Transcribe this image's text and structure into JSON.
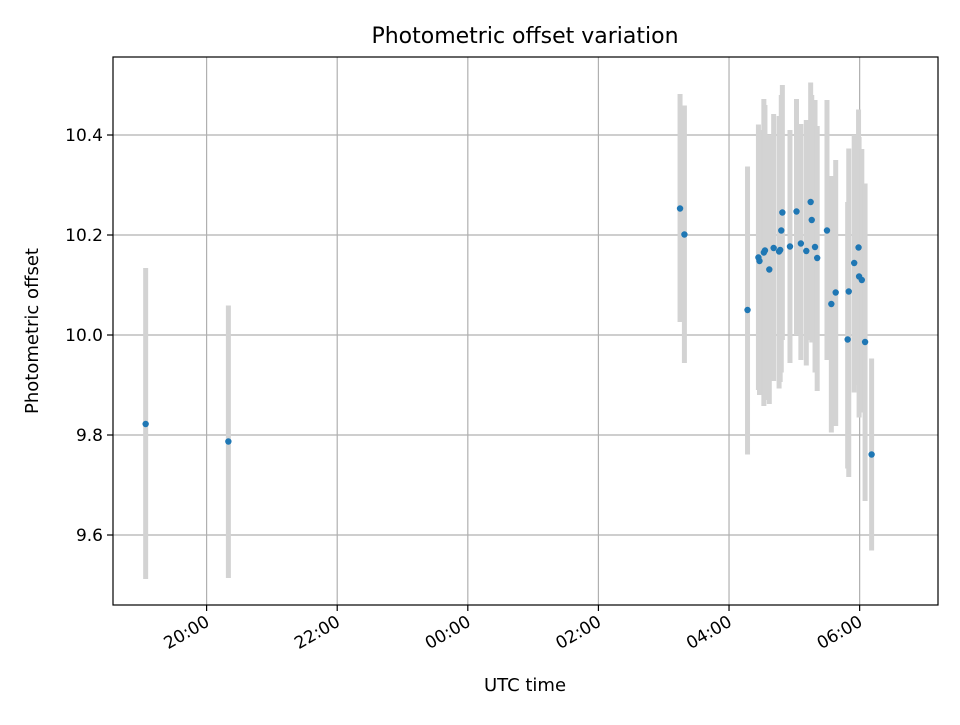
{
  "chart_data": {
    "type": "scatter",
    "title": "Photometric offset variation",
    "xlabel": "UTC time",
    "ylabel": "Photometric offset",
    "x_axis": {
      "type": "time",
      "start": "2000-01-01T18:34:00Z",
      "end": "2000-01-02T07:12:00Z",
      "ticks": [
        {
          "t": "2000-01-01T20:00:00Z",
          "label": "20:00"
        },
        {
          "t": "2000-01-01T22:00:00Z",
          "label": "22:00"
        },
        {
          "t": "2000-01-02T00:00:00Z",
          "label": "00:00"
        },
        {
          "t": "2000-01-02T02:00:00Z",
          "label": "02:00"
        },
        {
          "t": "2000-01-02T04:00:00Z",
          "label": "04:00"
        },
        {
          "t": "2000-01-02T06:00:00Z",
          "label": "06:00"
        }
      ]
    },
    "ylim": [
      9.46,
      10.556
    ],
    "y_ticks": [
      {
        "v": 9.6,
        "label": "9.6"
      },
      {
        "v": 9.8,
        "label": "9.8"
      },
      {
        "v": 10.0,
        "label": "10.0"
      },
      {
        "v": 10.2,
        "label": "10.2"
      },
      {
        "v": 10.4,
        "label": "10.4"
      }
    ],
    "grid": true,
    "colors": {
      "marker": "#1f77b4",
      "errorbar": "#d3d3d3",
      "grid": "#b0b0b0"
    },
    "points": [
      {
        "t": "2000-01-01T19:04:00Z",
        "y": 9.822,
        "lo": 9.512,
        "hi": 10.134
      },
      {
        "t": "2000-01-01T20:20:00Z",
        "y": 9.787,
        "lo": 9.514,
        "hi": 10.059
      },
      {
        "t": "2000-01-02T03:15:00Z",
        "y": 10.253,
        "lo": 10.026,
        "hi": 10.482
      },
      {
        "t": "2000-01-02T03:19:00Z",
        "y": 10.201,
        "lo": 9.944,
        "hi": 10.459
      },
      {
        "t": "2000-01-02T04:17:00Z",
        "y": 10.05,
        "lo": 9.761,
        "hi": 10.337
      },
      {
        "t": "2000-01-02T04:27:00Z",
        "y": 10.155,
        "lo": 9.89,
        "hi": 10.421
      },
      {
        "t": "2000-01-02T04:28:00Z",
        "y": 10.148,
        "lo": 9.88,
        "hi": 10.41
      },
      {
        "t": "2000-01-02T04:32:00Z",
        "y": 10.165,
        "lo": 9.858,
        "hi": 10.472
      },
      {
        "t": "2000-01-02T04:33:00Z",
        "y": 10.169,
        "lo": 9.87,
        "hi": 10.46
      },
      {
        "t": "2000-01-02T04:37:00Z",
        "y": 10.131,
        "lo": 9.862,
        "hi": 10.4
      },
      {
        "t": "2000-01-02T04:41:00Z",
        "y": 10.174,
        "lo": 9.908,
        "hi": 10.442
      },
      {
        "t": "2000-01-02T04:46:00Z",
        "y": 10.167,
        "lo": 9.893,
        "hi": 10.438
      },
      {
        "t": "2000-01-02T04:47:00Z",
        "y": 10.17,
        "lo": 9.906,
        "hi": 10.434
      },
      {
        "t": "2000-01-02T04:48:00Z",
        "y": 10.209,
        "lo": 9.925,
        "hi": 10.48
      },
      {
        "t": "2000-01-02T04:49:00Z",
        "y": 10.245,
        "lo": 9.99,
        "hi": 10.5
      },
      {
        "t": "2000-01-02T04:56:00Z",
        "y": 10.177,
        "lo": 9.944,
        "hi": 10.41
      },
      {
        "t": "2000-01-02T05:02:00Z",
        "y": 10.247,
        "lo": 10.0,
        "hi": 10.472
      },
      {
        "t": "2000-01-02T05:06:00Z",
        "y": 10.183,
        "lo": 9.95,
        "hi": 10.422
      },
      {
        "t": "2000-01-02T05:11:00Z",
        "y": 10.168,
        "lo": 9.939,
        "hi": 10.43
      },
      {
        "t": "2000-01-02T05:15:00Z",
        "y": 10.266,
        "lo": 9.99,
        "hi": 10.505
      },
      {
        "t": "2000-01-02T05:16:00Z",
        "y": 10.23,
        "lo": 9.985,
        "hi": 10.48
      },
      {
        "t": "2000-01-02T05:19:00Z",
        "y": 10.176,
        "lo": 9.925,
        "hi": 10.47
      },
      {
        "t": "2000-01-02T05:21:00Z",
        "y": 10.154,
        "lo": 9.888,
        "hi": 10.418
      },
      {
        "t": "2000-01-02T05:30:00Z",
        "y": 10.209,
        "lo": 9.95,
        "hi": 10.47
      },
      {
        "t": "2000-01-02T05:34:00Z",
        "y": 10.062,
        "lo": 9.805,
        "hi": 10.318
      },
      {
        "t": "2000-01-02T05:38:00Z",
        "y": 10.085,
        "lo": 9.818,
        "hi": 10.35
      },
      {
        "t": "2000-01-02T05:49:00Z",
        "y": 9.991,
        "lo": 9.733,
        "hi": 10.266
      },
      {
        "t": "2000-01-02T05:50:00Z",
        "y": 10.087,
        "lo": 9.716,
        "hi": 10.373
      },
      {
        "t": "2000-01-02T05:55:00Z",
        "y": 10.144,
        "lo": 9.885,
        "hi": 10.4
      },
      {
        "t": "2000-01-02T05:59:00Z",
        "y": 10.175,
        "lo": 9.9,
        "hi": 10.451
      },
      {
        "t": "2000-01-02T05:59:30Z",
        "y": 10.117,
        "lo": 9.835,
        "hi": 10.396
      },
      {
        "t": "2000-01-02T06:02:00Z",
        "y": 10.11,
        "lo": 9.845,
        "hi": 10.372
      },
      {
        "t": "2000-01-02T06:05:00Z",
        "y": 9.986,
        "lo": 9.668,
        "hi": 10.303
      },
      {
        "t": "2000-01-02T06:11:00Z",
        "y": 9.761,
        "lo": 9.569,
        "hi": 9.953
      }
    ]
  }
}
